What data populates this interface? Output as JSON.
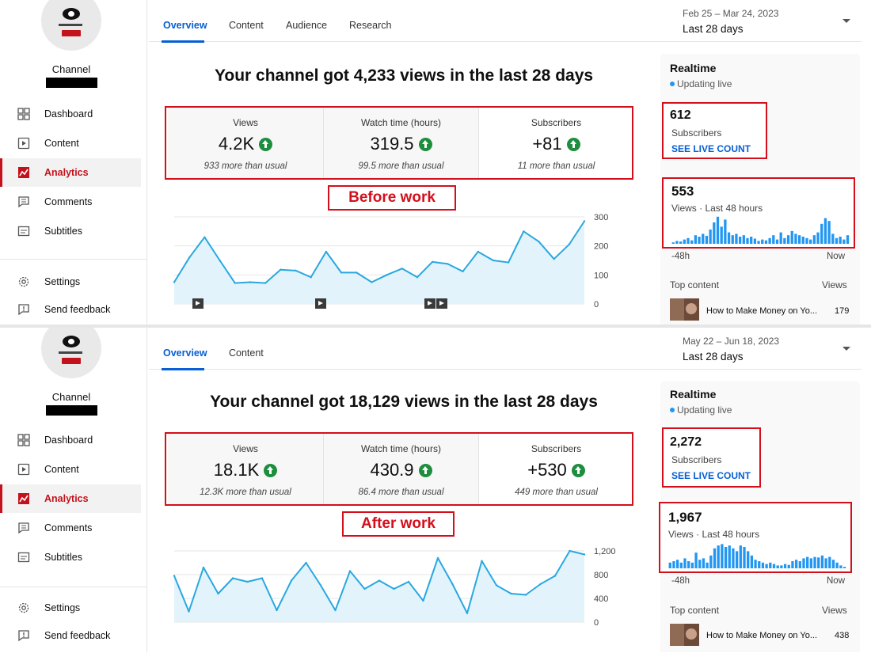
{
  "panels": [
    {
      "sidebar": {
        "channel_name": "Channel",
        "nav": [
          "Dashboard",
          "Content",
          "Analytics",
          "Comments",
          "Subtitles"
        ],
        "settings": "Settings",
        "feedback": "Send feedback"
      },
      "tabs": [
        "Overview",
        "Content",
        "Audience",
        "Research"
      ],
      "date_range": "Feb 25 – Mar 24, 2023",
      "date_label": "Last 28 days",
      "headline": "Your channel got 4,233 views in the last 28 days",
      "metrics": [
        {
          "label": "Views",
          "value": "4.2K",
          "sub": "933 more than usual"
        },
        {
          "label": "Watch time (hours)",
          "value": "319.5",
          "sub": "99.5 more than usual"
        },
        {
          "label": "Subscribers",
          "value": "+81",
          "sub": "11 more than usual"
        }
      ],
      "stamp": "Before work",
      "chart_data": {
        "type": "area",
        "y_ticks": [
          "300",
          "200",
          "100",
          "0"
        ],
        "ylim": [
          0,
          300
        ],
        "values": [
          75,
          160,
          230,
          150,
          72,
          75,
          72,
          118,
          115,
          92,
          180,
          108,
          108,
          75,
          100,
          122,
          92,
          145,
          138,
          112,
          180,
          150,
          143,
          250,
          215,
          155,
          205,
          285
        ]
      },
      "realtime": {
        "title": "Realtime",
        "live": "Updating live",
        "subscribers": "612",
        "subscribers_label": "Subscribers",
        "live_count": "SEE LIVE COUNT",
        "views": "553",
        "views_label": "Views · Last 48 hours",
        "bars": [
          0.05,
          0.1,
          0.08,
          0.15,
          0.2,
          0.12,
          0.3,
          0.25,
          0.35,
          0.28,
          0.5,
          0.75,
          0.95,
          0.6,
          0.85,
          0.4,
          0.3,
          0.35,
          0.25,
          0.3,
          0.2,
          0.25,
          0.18,
          0.1,
          0.15,
          0.12,
          0.2,
          0.3,
          0.15,
          0.4,
          0.2,
          0.3,
          0.45,
          0.35,
          0.3,
          0.25,
          0.2,
          0.15,
          0.3,
          0.4,
          0.7,
          0.9,
          0.8,
          0.35,
          0.2,
          0.25,
          0.15,
          0.3
        ],
        "axis_left": "-48h",
        "axis_right": "Now",
        "top_content": "Top content",
        "views_col": "Views",
        "video_title": "How to Make Money on Yo...",
        "video_views": "179"
      }
    },
    {
      "sidebar": {
        "channel_name": "Channel",
        "nav": [
          "Dashboard",
          "Content",
          "Analytics",
          "Comments",
          "Subtitles"
        ],
        "settings": "Settings",
        "feedback": "Send feedback"
      },
      "tabs": [
        "Overview",
        "Content"
      ],
      "date_range": "May 22 – Jun 18, 2023",
      "date_label": "Last 28 days",
      "headline": "Your channel got 18,129 views in the last 28 days",
      "metrics": [
        {
          "label": "Views",
          "value": "18.1K",
          "sub": "12.3K more than usual"
        },
        {
          "label": "Watch time (hours)",
          "value": "430.9",
          "sub": "86.4 more than usual"
        },
        {
          "label": "Subscribers",
          "value": "+530",
          "sub": "449 more than usual"
        }
      ],
      "stamp": "After work",
      "chart_data": {
        "type": "area",
        "y_ticks": [
          "1,200",
          "800",
          "400",
          "0"
        ],
        "ylim": [
          0,
          1200
        ],
        "values": [
          780,
          180,
          920,
          480,
          740,
          680,
          740,
          200,
          700,
          1000,
          620,
          200,
          860,
          560,
          700,
          560,
          680,
          360,
          1080,
          640,
          150,
          1030,
          620,
          480,
          460,
          640,
          780,
          1200,
          1140
        ]
      },
      "realtime": {
        "title": "Realtime",
        "live": "Updating live",
        "subscribers": "2,272",
        "subscribers_label": "Subscribers",
        "live_count": "SEE LIVE COUNT",
        "views": "1,967",
        "views_label": "Views · Last 48 hours",
        "bars": [
          0.2,
          0.25,
          0.3,
          0.2,
          0.35,
          0.25,
          0.2,
          0.55,
          0.3,
          0.35,
          0.2,
          0.45,
          0.7,
          0.8,
          0.85,
          0.75,
          0.8,
          0.7,
          0.6,
          0.8,
          0.75,
          0.6,
          0.45,
          0.3,
          0.25,
          0.2,
          0.15,
          0.2,
          0.15,
          0.1,
          0.1,
          0.15,
          0.12,
          0.25,
          0.3,
          0.25,
          0.35,
          0.4,
          0.35,
          0.4,
          0.38,
          0.45,
          0.35,
          0.4,
          0.3,
          0.2,
          0.1,
          0.05
        ],
        "axis_left": "-48h",
        "axis_right": "Now",
        "top_content": "Top content",
        "views_col": "Views",
        "video_title": "How to Make Money on Yo...",
        "video_views": "438"
      }
    }
  ]
}
